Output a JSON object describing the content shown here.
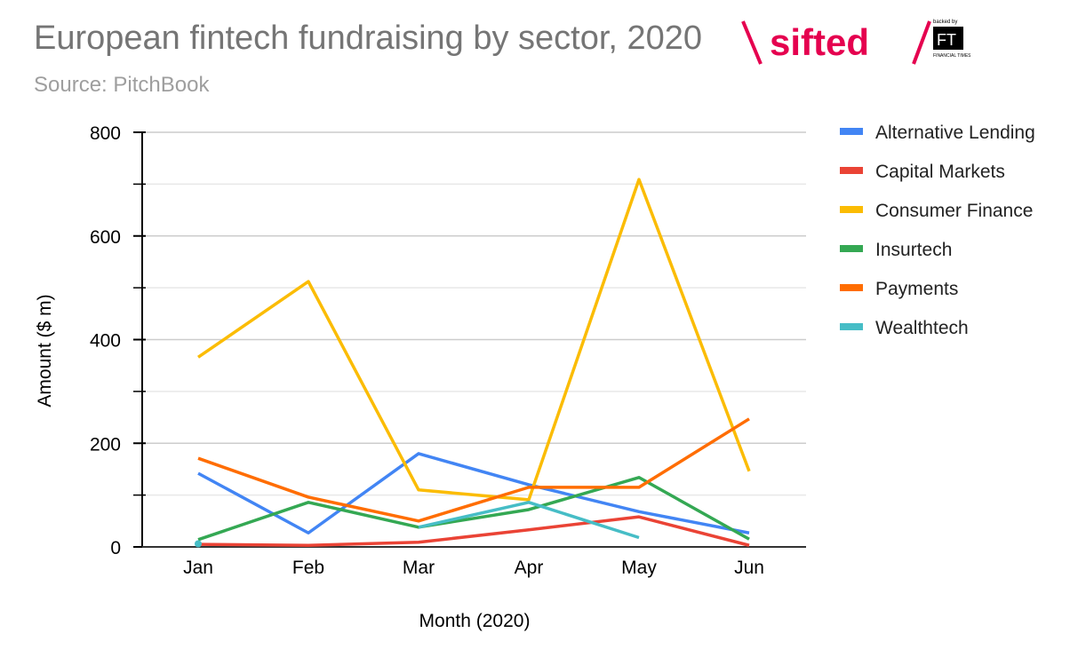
{
  "chart_data": {
    "type": "line",
    "title": "European fintech fundraising by sector, 2020",
    "subtitle": "Source: PitchBook",
    "xlabel": "Month (2020)",
    "ylabel": "Amount ($ m)",
    "categories": [
      "Jan",
      "Feb",
      "Mar",
      "Apr",
      "May",
      "Jun"
    ],
    "ylim": [
      0,
      800
    ],
    "yticks": [
      0,
      200,
      400,
      600,
      800
    ],
    "grid": true,
    "legend_position": "right",
    "series": [
      {
        "name": "Alternative Lending",
        "color": "#4285f4",
        "values": [
          142,
          27,
          180,
          120,
          68,
          27
        ]
      },
      {
        "name": "Capital Markets",
        "color": "#ea4335",
        "values": [
          5,
          3,
          9,
          33,
          58,
          3
        ]
      },
      {
        "name": "Consumer Finance",
        "color": "#fbbc04",
        "values": [
          366,
          512,
          110,
          91,
          709,
          146
        ]
      },
      {
        "name": "Insurtech",
        "color": "#34a853",
        "values": [
          14,
          86,
          38,
          72,
          134,
          15
        ]
      },
      {
        "name": "Payments",
        "color": "#ff6d01",
        "values": [
          171,
          96,
          50,
          115,
          115,
          247
        ]
      },
      {
        "name": "Wealthtech",
        "color": "#46bdc6",
        "values": [
          6,
          null,
          38,
          86,
          18,
          null
        ]
      }
    ]
  },
  "logo": {
    "brand": "sifted",
    "backed_by": "backed by",
    "ft": "FT",
    "ft_sub": "FINANCIAL TIMES"
  }
}
